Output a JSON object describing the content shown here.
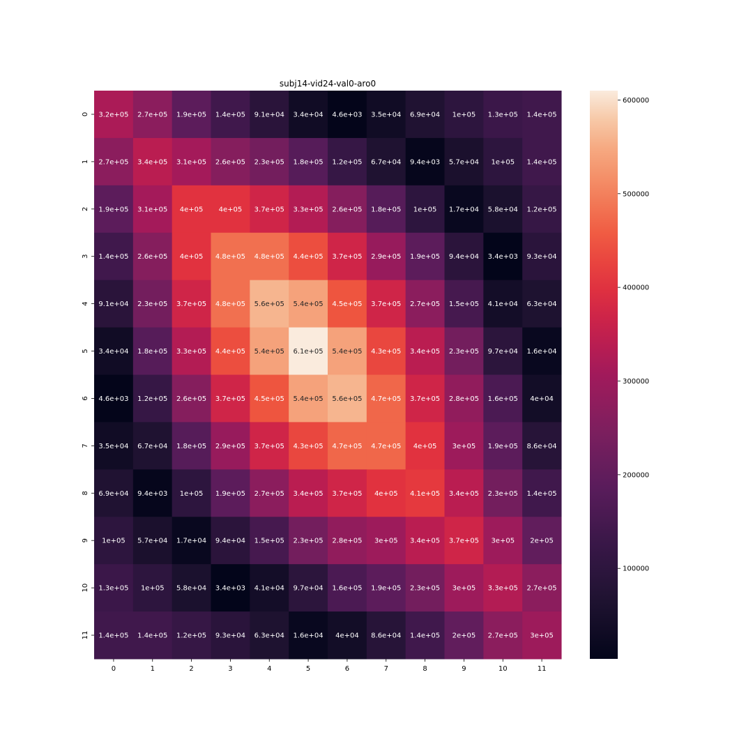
{
  "chart_data": {
    "type": "heatmap",
    "title": "subj14-vid24-val0-aro0",
    "xlabel": "",
    "ylabel": "",
    "x_ticks": [
      "0",
      "1",
      "2",
      "3",
      "4",
      "5",
      "6",
      "7",
      "8",
      "9",
      "10",
      "11"
    ],
    "y_ticks": [
      "0",
      "1",
      "2",
      "3",
      "4",
      "5",
      "6",
      "7",
      "8",
      "9",
      "10",
      "11"
    ],
    "colormap": "rocket",
    "colorbar": {
      "range": [
        3400,
        610000
      ],
      "ticks": [
        100000,
        200000,
        300000,
        400000,
        500000,
        600000
      ],
      "tick_labels": [
        "100000",
        "200000",
        "300000",
        "400000",
        "500000",
        "600000"
      ]
    },
    "values": [
      [
        320000,
        270000,
        190000,
        140000,
        91000,
        34000,
        4600,
        35000,
        69000,
        100000,
        130000,
        140000
      ],
      [
        270000,
        340000,
        310000,
        260000,
        230000,
        180000,
        120000,
        67000,
        9400,
        57000,
        100000,
        140000
      ],
      [
        190000,
        310000,
        400000,
        400000,
        370000,
        330000,
        260000,
        180000,
        100000,
        17000,
        58000,
        120000
      ],
      [
        140000,
        260000,
        400000,
        480000,
        480000,
        440000,
        370000,
        290000,
        190000,
        94000,
        3400,
        93000
      ],
      [
        91000,
        230000,
        370000,
        480000,
        560000,
        540000,
        450000,
        370000,
        270000,
        150000,
        41000,
        63000
      ],
      [
        34000,
        180000,
        330000,
        440000,
        540000,
        610000,
        540000,
        430000,
        340000,
        230000,
        97000,
        16000
      ],
      [
        4600,
        120000,
        260000,
        370000,
        450000,
        540000,
        560000,
        470000,
        370000,
        280000,
        160000,
        40000
      ],
      [
        35000,
        67000,
        180000,
        290000,
        370000,
        430000,
        470000,
        470000,
        400000,
        300000,
        190000,
        86000
      ],
      [
        69000,
        9400,
        100000,
        190000,
        270000,
        340000,
        370000,
        400000,
        410000,
        340000,
        230000,
        140000
      ],
      [
        100000,
        57000,
        17000,
        94000,
        150000,
        230000,
        280000,
        300000,
        340000,
        370000,
        300000,
        200000
      ],
      [
        130000,
        100000,
        58000,
        3400,
        41000,
        97000,
        160000,
        190000,
        230000,
        300000,
        330000,
        270000
      ],
      [
        140000,
        140000,
        120000,
        93000,
        63000,
        16000,
        40000,
        86000,
        140000,
        200000,
        270000,
        300000
      ]
    ],
    "annotations": [
      [
        "3.2e+05",
        "2.7e+05",
        "1.9e+05",
        "1.4e+05",
        "9.1e+04",
        "3.4e+04",
        "4.6e+03",
        "3.5e+04",
        "6.9e+04",
        "1e+05",
        "1.3e+05",
        "1.4e+05"
      ],
      [
        "2.7e+05",
        "3.4e+05",
        "3.1e+05",
        "2.6e+05",
        "2.3e+05",
        "1.8e+05",
        "1.2e+05",
        "6.7e+04",
        "9.4e+03",
        "5.7e+04",
        "1e+05",
        "1.4e+05"
      ],
      [
        "1.9e+05",
        "3.1e+05",
        "4e+05",
        "4e+05",
        "3.7e+05",
        "3.3e+05",
        "2.6e+05",
        "1.8e+05",
        "1e+05",
        "1.7e+04",
        "5.8e+04",
        "1.2e+05"
      ],
      [
        "1.4e+05",
        "2.6e+05",
        "4e+05",
        "4.8e+05",
        "4.8e+05",
        "4.4e+05",
        "3.7e+05",
        "2.9e+05",
        "1.9e+05",
        "9.4e+04",
        "3.4e+03",
        "9.3e+04"
      ],
      [
        "9.1e+04",
        "2.3e+05",
        "3.7e+05",
        "4.8e+05",
        "5.6e+05",
        "5.4e+05",
        "4.5e+05",
        "3.7e+05",
        "2.7e+05",
        "1.5e+05",
        "4.1e+04",
        "6.3e+04"
      ],
      [
        "3.4e+04",
        "1.8e+05",
        "3.3e+05",
        "4.4e+05",
        "5.4e+05",
        "6.1e+05",
        "5.4e+05",
        "4.3e+05",
        "3.4e+05",
        "2.3e+05",
        "9.7e+04",
        "1.6e+04"
      ],
      [
        "4.6e+03",
        "1.2e+05",
        "2.6e+05",
        "3.7e+05",
        "4.5e+05",
        "5.4e+05",
        "5.6e+05",
        "4.7e+05",
        "3.7e+05",
        "2.8e+05",
        "1.6e+05",
        "4e+04"
      ],
      [
        "3.5e+04",
        "6.7e+04",
        "1.8e+05",
        "2.9e+05",
        "3.7e+05",
        "4.3e+05",
        "4.7e+05",
        "4.7e+05",
        "4e+05",
        "3e+05",
        "1.9e+05",
        "8.6e+04"
      ],
      [
        "6.9e+04",
        "9.4e+03",
        "1e+05",
        "1.9e+05",
        "2.7e+05",
        "3.4e+05",
        "3.7e+05",
        "4e+05",
        "4.1e+05",
        "3.4e+05",
        "2.3e+05",
        "1.4e+05"
      ],
      [
        "1e+05",
        "5.7e+04",
        "1.7e+04",
        "9.4e+04",
        "1.5e+05",
        "2.3e+05",
        "2.8e+05",
        "3e+05",
        "3.4e+05",
        "3.7e+05",
        "3e+05",
        "2e+05"
      ],
      [
        "1.3e+05",
        "1e+05",
        "5.8e+04",
        "3.4e+03",
        "4.1e+04",
        "9.7e+04",
        "1.6e+05",
        "1.9e+05",
        "2.3e+05",
        "3e+05",
        "3.3e+05",
        "2.7e+05"
      ],
      [
        "1.4e+05",
        "1.4e+05",
        "1.2e+05",
        "9.3e+04",
        "6.3e+04",
        "1.6e+04",
        "4e+04",
        "8.6e+04",
        "1.4e+05",
        "2e+05",
        "2.7e+05",
        "3e+05"
      ]
    ]
  }
}
